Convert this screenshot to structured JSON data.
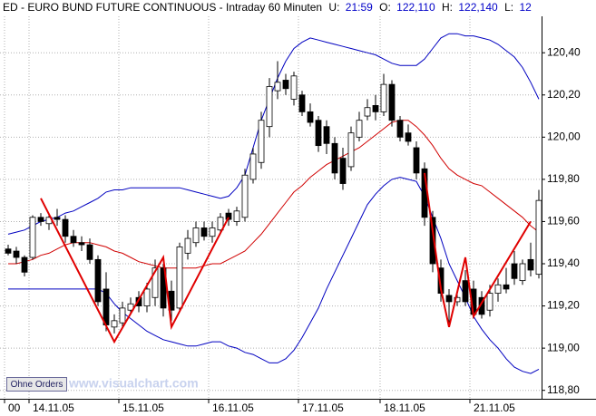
{
  "chart_data": {
    "type": "candlestick",
    "title": "ED - EURO BUND FUTURE CONTINUOUS - Intraday 60 Minuten",
    "fields": [
      {
        "label": "U:",
        "value": "21:59"
      },
      {
        "label": "O:",
        "value": "122,110"
      },
      {
        "label": "H:",
        "value": "122,140"
      },
      {
        "label": "L:",
        "value": "12"
      }
    ],
    "categories": [
      "00",
      null,
      null,
      "14.11.05",
      null,
      null,
      null,
      null,
      null,
      null,
      null,
      null,
      null,
      null,
      "15.11.05",
      null,
      null,
      null,
      null,
      null,
      null,
      null,
      null,
      null,
      null,
      "16.11.05",
      null,
      null,
      null,
      null,
      null,
      null,
      null,
      null,
      null,
      null,
      "17.11.05",
      null,
      null,
      null,
      null,
      null,
      null,
      null,
      null,
      null,
      "18.11.05",
      null,
      null,
      null,
      null,
      null,
      null,
      null,
      null,
      null,
      null,
      "21.11.05",
      null,
      null,
      null,
      null,
      null,
      null,
      null,
      null
    ],
    "open": [
      119.47,
      119.46,
      119.43,
      119.43,
      119.62,
      119.59,
      119.62,
      119.61,
      119.53,
      119.5,
      119.49,
      119.42,
      119.28,
      119.1,
      119.12,
      119.18,
      119.24,
      119.2,
      119.24,
      119.38,
      119.27,
      119.19,
      119.45,
      119.5,
      119.57,
      119.53,
      119.56,
      119.64,
      119.6,
      119.62,
      119.8,
      119.88,
      120.05,
      120.22,
      120.27,
      120.18,
      120.2,
      120.12,
      120.08,
      120.05,
      119.97,
      119.9,
      119.86,
      120.0,
      120.1,
      120.15,
      120.12,
      120.25,
      120.08,
      120.02,
      119.95,
      119.85,
      119.62,
      119.38,
      119.25,
      119.22,
      119.32,
      119.28,
      119.24,
      119.18,
      119.26,
      119.3,
      119.4,
      119.32,
      119.42,
      119.35
    ],
    "high": [
      119.49,
      119.48,
      119.44,
      119.63,
      119.64,
      119.63,
      119.66,
      119.63,
      119.56,
      119.53,
      119.52,
      119.44,
      119.36,
      119.16,
      119.22,
      119.24,
      119.27,
      119.31,
      119.42,
      119.4,
      119.32,
      119.5,
      119.56,
      119.6,
      119.6,
      119.6,
      119.64,
      119.66,
      119.67,
      119.85,
      119.95,
      120.12,
      120.28,
      120.36,
      120.3,
      120.31,
      120.22,
      120.16,
      120.1,
      120.08,
      120.0,
      119.95,
      120.05,
      120.12,
      120.18,
      120.2,
      120.3,
      120.27,
      120.1,
      120.06,
      119.98,
      119.88,
      119.65,
      119.42,
      119.28,
      119.27,
      119.37,
      119.32,
      119.27,
      119.3,
      119.33,
      119.38,
      119.46,
      119.42,
      119.5,
      119.75
    ],
    "low": [
      119.44,
      119.4,
      119.34,
      119.42,
      119.58,
      119.56,
      119.58,
      119.5,
      119.48,
      119.46,
      119.4,
      119.2,
      119.08,
      119.07,
      119.1,
      119.16,
      119.17,
      119.17,
      119.2,
      119.15,
      119.13,
      119.17,
      119.42,
      119.48,
      119.51,
      119.5,
      119.54,
      119.58,
      119.58,
      119.6,
      119.78,
      119.85,
      120.0,
      120.18,
      120.2,
      120.15,
      120.1,
      120.05,
      119.93,
      119.92,
      119.8,
      119.75,
      119.84,
      119.98,
      120.08,
      120.08,
      120.1,
      120.05,
      119.98,
      119.96,
      119.8,
      119.58,
      119.36,
      119.22,
      119.12,
      119.2,
      119.2,
      119.14,
      119.14,
      119.15,
      119.22,
      119.26,
      119.3,
      119.3,
      119.34,
      119.33
    ],
    "close": [
      119.45,
      119.43,
      119.36,
      119.62,
      119.6,
      119.62,
      119.61,
      119.53,
      119.5,
      119.49,
      119.42,
      119.22,
      119.11,
      119.13,
      119.19,
      119.21,
      119.2,
      119.28,
      119.38,
      119.19,
      119.18,
      119.48,
      119.52,
      119.57,
      119.53,
      119.57,
      119.62,
      119.61,
      119.65,
      119.82,
      119.92,
      120.08,
      120.24,
      120.26,
      120.23,
      120.29,
      120.12,
      120.07,
      119.96,
      119.97,
      119.83,
      119.78,
      120.02,
      120.08,
      120.14,
      120.12,
      120.25,
      120.08,
      120.0,
      119.98,
      119.83,
      119.62,
      119.4,
      119.26,
      119.22,
      119.24,
      119.22,
      119.16,
      119.16,
      119.26,
      119.3,
      119.28,
      119.33,
      119.4,
      119.37,
      119.7
    ],
    "up_color": "#ffffff",
    "down_color": "#000000",
    "upper_band": {
      "color": "#0000c0",
      "values": [
        119.54,
        119.55,
        119.56,
        119.58,
        119.6,
        119.61,
        119.62,
        119.64,
        119.65,
        119.67,
        119.69,
        119.71,
        119.74,
        119.75,
        119.75,
        119.76,
        119.76,
        119.76,
        119.76,
        119.76,
        119.76,
        119.76,
        119.75,
        119.74,
        119.73,
        119.72,
        119.71,
        119.72,
        119.76,
        119.82,
        119.95,
        120.08,
        120.18,
        120.28,
        120.36,
        120.42,
        120.45,
        120.47,
        120.46,
        120.45,
        120.44,
        120.43,
        120.42,
        120.41,
        120.4,
        120.39,
        120.37,
        120.35,
        120.34,
        120.34,
        120.34,
        120.37,
        120.42,
        120.47,
        120.49,
        120.49,
        120.48,
        120.48,
        120.47,
        120.46,
        120.44,
        120.41,
        120.38,
        120.33,
        120.26,
        120.18
      ]
    },
    "lower_band": {
      "color": "#0000c0",
      "values": [
        119.28,
        119.28,
        119.28,
        119.28,
        119.28,
        119.28,
        119.28,
        119.28,
        119.28,
        119.28,
        119.28,
        119.28,
        119.26,
        119.21,
        119.17,
        119.14,
        119.11,
        119.08,
        119.06,
        119.04,
        119.03,
        119.02,
        119.01,
        119.01,
        119.02,
        119.03,
        119.03,
        119.01,
        119.0,
        118.98,
        118.97,
        118.95,
        118.93,
        118.93,
        118.95,
        118.99,
        119.05,
        119.12,
        119.19,
        119.28,
        119.36,
        119.44,
        119.52,
        119.6,
        119.68,
        119.73,
        119.77,
        119.8,
        119.81,
        119.8,
        119.79,
        119.72,
        119.62,
        119.52,
        119.4,
        119.32,
        119.24,
        119.15,
        119.09,
        119.04,
        119.0,
        118.95,
        118.91,
        118.89,
        118.88,
        118.9
      ]
    },
    "moving_average": {
      "color": "#d00000",
      "values": [
        119.4,
        119.4,
        119.41,
        119.42,
        119.44,
        119.45,
        119.47,
        119.49,
        119.5,
        119.5,
        119.5,
        119.49,
        119.48,
        119.46,
        119.45,
        119.43,
        119.41,
        119.4,
        119.39,
        119.38,
        119.38,
        119.38,
        119.38,
        119.38,
        119.39,
        119.4,
        119.4,
        119.42,
        119.44,
        119.46,
        119.5,
        119.54,
        119.59,
        119.64,
        119.69,
        119.74,
        119.77,
        119.81,
        119.84,
        119.87,
        119.89,
        119.91,
        119.93,
        119.95,
        119.98,
        120.01,
        120.04,
        120.07,
        120.08,
        120.08,
        120.05,
        120.01,
        119.96,
        119.9,
        119.85,
        119.82,
        119.8,
        119.78,
        119.77,
        119.74,
        119.71,
        119.68,
        119.65,
        119.62,
        119.58,
        119.55
      ]
    },
    "zigzag": [
      {
        "color": "#e00000",
        "x": [
          4,
          13,
          19,
          20,
          27
        ],
        "values": [
          119.71,
          119.03,
          119.43,
          119.1,
          119.62
        ]
      },
      {
        "color": "#e00000",
        "x": [
          51,
          53,
          54,
          56,
          57,
          64
        ],
        "values": [
          119.83,
          119.28,
          119.1,
          119.43,
          119.15,
          119.6
        ]
      }
    ],
    "ylim": [
      118.76,
      120.65
    ],
    "yticks": [
      {
        "value": 118.8,
        "label": "118,80"
      },
      {
        "value": 119.0,
        "label": "119,00"
      },
      {
        "value": 119.2,
        "label": "119,20"
      },
      {
        "value": 119.4,
        "label": "119,40"
      },
      {
        "value": 119.6,
        "label": "119,60"
      },
      {
        "value": 119.8,
        "label": "119,80"
      },
      {
        "value": 120.0,
        "label": "120,00"
      },
      {
        "value": 120.2,
        "label": "120,20"
      },
      {
        "value": 120.4,
        "label": "120,40"
      }
    ],
    "grid": true
  },
  "watermark": "www.visualchart.com",
  "button": "Ohne Orders"
}
